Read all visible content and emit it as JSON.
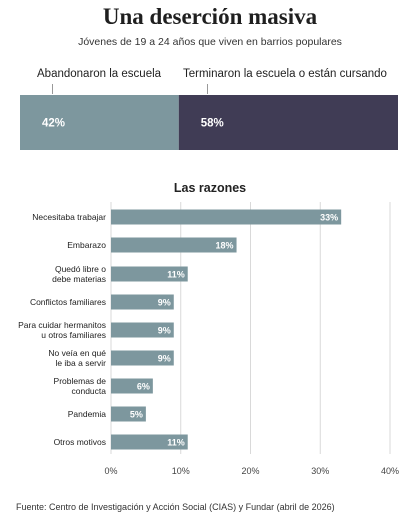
{
  "header": {
    "title": "Una deserción masiva",
    "subtitle": "Jóvenes de 19 a 24 años que viven en barrios populares"
  },
  "footer": {
    "source": "Fuente: Centro de Investigación y Acción Social (CIAS) y Fundar (abril de 2026)"
  },
  "colors": {
    "teal": "#7d979e",
    "dark": "#403c55",
    "grid": "#d9d9d9",
    "text": "#222222"
  },
  "chart_data": [
    {
      "type": "bar",
      "orientation": "horizontal-stacked",
      "series": [
        {
          "name": "Abandonaron la escuela",
          "value": 42,
          "label": "42%",
          "color": "#7d979e"
        },
        {
          "name": "Terminaron la escuela o están cursando",
          "value": 58,
          "label": "58%",
          "color": "#403c55"
        }
      ]
    },
    {
      "type": "bar",
      "orientation": "horizontal",
      "title": "Las razones",
      "categories": [
        [
          "Necesitaba trabajar"
        ],
        [
          "Embarazo"
        ],
        [
          "Quedó libre o",
          "debe materias"
        ],
        [
          "Conflictos familiares"
        ],
        [
          "Para cuidar hermanitos",
          "u otros familiares"
        ],
        [
          "No veía en qué",
          "le iba a servir"
        ],
        [
          "Problemas de",
          "conducta"
        ],
        [
          "Pandemia"
        ],
        [
          "Otros motivos"
        ]
      ],
      "values": [
        33,
        18,
        11,
        9,
        9,
        9,
        6,
        5,
        11
      ],
      "value_labels": [
        "33%",
        "18%",
        "11%",
        "9%",
        "9%",
        "9%",
        "6%",
        "5%",
        "11%"
      ],
      "xlim": [
        0,
        40
      ],
      "xticks": [
        0,
        10,
        20,
        30,
        40
      ],
      "xtick_labels": [
        "0%",
        "10%",
        "20%",
        "30%",
        "40%"
      ],
      "grid": true,
      "bar_color": "#7d979e"
    }
  ]
}
